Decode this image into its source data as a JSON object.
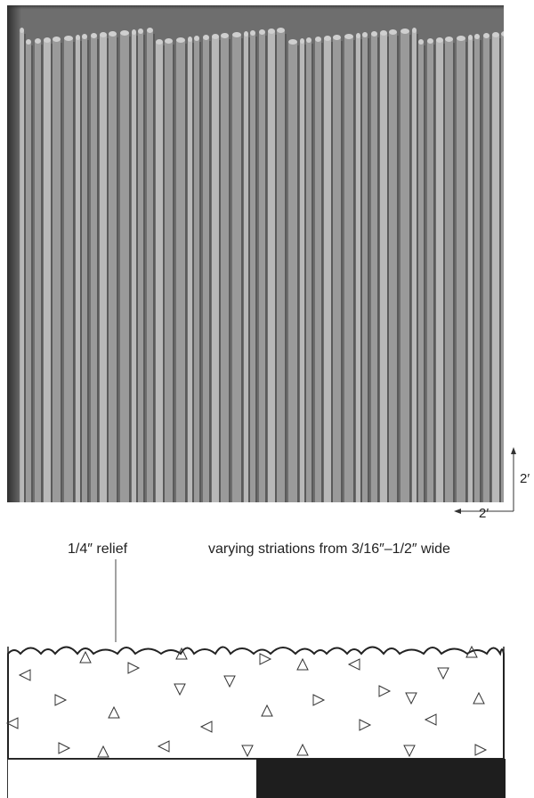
{
  "labels": {
    "dimension_horizontal": "2′",
    "dimension_vertical": "2′",
    "relief_fraction": "1/4″",
    "relief_text": "relief",
    "striation_text": "varying striations from",
    "striation_min": "3/16″",
    "striation_max": "1/2″",
    "striation_suffix": "wide"
  },
  "colors": {
    "panel_background": "#6f6f6f",
    "panel_shadow": "#3d3d3d",
    "striation_light": "#b8b8b8",
    "striation_mid": "#9a9a9a",
    "striation_dark": "#5a5a5a",
    "section_outline": "#333333",
    "bar_dark": "#1e1e1e"
  }
}
